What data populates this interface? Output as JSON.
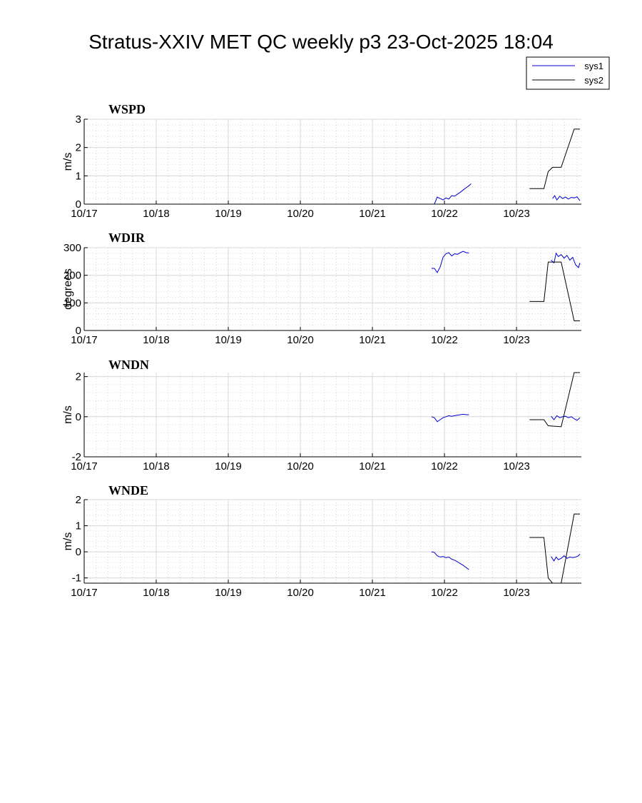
{
  "title": "Stratus-XXIV MET QC weekly p3 23-Oct-2025 18:04",
  "legend": {
    "position": "top-right",
    "entries": [
      {
        "name": "sys1",
        "color": "#0000cc"
      },
      {
        "name": "sys2",
        "color": "#000000"
      }
    ]
  },
  "chart_data": [
    {
      "type": "line",
      "title": "WSPD",
      "ylabel": "m/s",
      "xlim": [
        0,
        6.9
      ],
      "ylim": [
        0,
        3
      ],
      "yticks": [
        0,
        1,
        2,
        3
      ],
      "grid": true,
      "x_ticks": [
        {
          "x": 0,
          "label": "10/17"
        },
        {
          "x": 1,
          "label": "10/18"
        },
        {
          "x": 2,
          "label": "10/19"
        },
        {
          "x": 3,
          "label": "10/20"
        },
        {
          "x": 4,
          "label": "10/21"
        },
        {
          "x": 5,
          "label": "10/22"
        },
        {
          "x": 6,
          "label": "10/23"
        }
      ],
      "series": [
        {
          "name": "sys1",
          "color": "#0000cc",
          "segments": [
            [
              [
                4.86,
                0.0
              ],
              [
                4.9,
                0.25
              ],
              [
                4.94,
                0.2
              ],
              [
                4.98,
                0.15
              ],
              [
                5.02,
                0.22
              ],
              [
                5.06,
                0.18
              ],
              [
                5.1,
                0.3
              ],
              [
                5.14,
                0.28
              ],
              [
                5.18,
                0.35
              ],
              [
                5.22,
                0.42
              ],
              [
                5.26,
                0.5
              ],
              [
                5.3,
                0.58
              ],
              [
                5.34,
                0.65
              ],
              [
                5.37,
                0.72
              ]
            ],
            [
              [
                6.5,
                0.2
              ],
              [
                6.53,
                0.3
              ],
              [
                6.56,
                0.15
              ],
              [
                6.6,
                0.28
              ],
              [
                6.64,
                0.2
              ],
              [
                6.68,
                0.25
              ],
              [
                6.72,
                0.18
              ],
              [
                6.76,
                0.24
              ],
              [
                6.8,
                0.22
              ],
              [
                6.84,
                0.26
              ],
              [
                6.88,
                0.12
              ]
            ]
          ]
        },
        {
          "name": "sys2",
          "color": "#000000",
          "segments": [
            [
              [
                6.18,
                0.55
              ],
              [
                6.38,
                0.55
              ],
              [
                6.44,
                1.15
              ],
              [
                6.5,
                1.3
              ],
              [
                6.62,
                1.3
              ],
              [
                6.8,
                2.65
              ],
              [
                6.88,
                2.65
              ]
            ]
          ]
        }
      ]
    },
    {
      "type": "line",
      "title": "WDIR",
      "ylabel": "degrees",
      "xlim": [
        0,
        6.9
      ],
      "ylim": [
        0,
        300
      ],
      "yticks": [
        0,
        100,
        200,
        300
      ],
      "grid": true,
      "x_ticks": [
        {
          "x": 0,
          "label": "10/17"
        },
        {
          "x": 1,
          "label": "10/18"
        },
        {
          "x": 2,
          "label": "10/19"
        },
        {
          "x": 3,
          "label": "10/20"
        },
        {
          "x": 4,
          "label": "10/21"
        },
        {
          "x": 5,
          "label": "10/22"
        },
        {
          "x": 6,
          "label": "10/23"
        }
      ],
      "series": [
        {
          "name": "sys1",
          "color": "#0000cc",
          "segments": [
            [
              [
                4.82,
                225
              ],
              [
                4.86,
                225
              ],
              [
                4.9,
                210
              ],
              [
                4.94,
                230
              ],
              [
                4.98,
                265
              ],
              [
                5.02,
                278
              ],
              [
                5.06,
                282
              ],
              [
                5.1,
                270
              ],
              [
                5.14,
                278
              ],
              [
                5.18,
                276
              ],
              [
                5.22,
                282
              ],
              [
                5.26,
                287
              ],
              [
                5.3,
                282
              ],
              [
                5.34,
                281
              ]
            ],
            [
              [
                6.48,
                255
              ],
              [
                6.52,
                245
              ],
              [
                6.55,
                280
              ],
              [
                6.58,
                268
              ],
              [
                6.62,
                275
              ],
              [
                6.66,
                262
              ],
              [
                6.7,
                272
              ],
              [
                6.74,
                255
              ],
              [
                6.78,
                265
              ],
              [
                6.82,
                238
              ],
              [
                6.86,
                228
              ],
              [
                6.88,
                245
              ]
            ]
          ]
        },
        {
          "name": "sys2",
          "color": "#000000",
          "segments": [
            [
              [
                6.18,
                105
              ],
              [
                6.38,
                105
              ],
              [
                6.44,
                248
              ],
              [
                6.62,
                248
              ],
              [
                6.8,
                35
              ],
              [
                6.88,
                35
              ]
            ]
          ]
        }
      ]
    },
    {
      "type": "line",
      "title": "WNDN",
      "ylabel": "m/s",
      "xlim": [
        0,
        6.9
      ],
      "ylim": [
        -2,
        2.2
      ],
      "yticks": [
        -2,
        0,
        2
      ],
      "grid": true,
      "x_ticks": [
        {
          "x": 0,
          "label": "10/17"
        },
        {
          "x": 1,
          "label": "10/18"
        },
        {
          "x": 2,
          "label": "10/19"
        },
        {
          "x": 3,
          "label": "10/20"
        },
        {
          "x": 4,
          "label": "10/21"
        },
        {
          "x": 5,
          "label": "10/22"
        },
        {
          "x": 6,
          "label": "10/23"
        }
      ],
      "series": [
        {
          "name": "sys1",
          "color": "#0000cc",
          "segments": [
            [
              [
                4.82,
                0.0
              ],
              [
                4.86,
                -0.05
              ],
              [
                4.9,
                -0.25
              ],
              [
                4.94,
                -0.15
              ],
              [
                4.98,
                -0.05
              ],
              [
                5.02,
                0.0
              ],
              [
                5.06,
                0.05
              ],
              [
                5.1,
                0.02
              ],
              [
                5.14,
                0.05
              ],
              [
                5.18,
                0.08
              ],
              [
                5.22,
                0.1
              ],
              [
                5.26,
                0.12
              ],
              [
                5.3,
                0.1
              ],
              [
                5.34,
                0.1
              ]
            ],
            [
              [
                6.48,
                0.02
              ],
              [
                6.52,
                -0.15
              ],
              [
                6.56,
                0.05
              ],
              [
                6.6,
                -0.05
              ],
              [
                6.64,
                0.0
              ],
              [
                6.68,
                0.02
              ],
              [
                6.72,
                -0.05
              ],
              [
                6.76,
                0.0
              ],
              [
                6.8,
                -0.1
              ],
              [
                6.84,
                -0.18
              ],
              [
                6.88,
                -0.05
              ]
            ]
          ]
        },
        {
          "name": "sys2",
          "color": "#000000",
          "segments": [
            [
              [
                6.18,
                -0.15
              ],
              [
                6.38,
                -0.15
              ],
              [
                6.44,
                -0.45
              ],
              [
                6.62,
                -0.5
              ],
              [
                6.8,
                2.2
              ],
              [
                6.88,
                2.2
              ]
            ]
          ]
        }
      ]
    },
    {
      "type": "line",
      "title": "WNDE",
      "ylabel": "m/s",
      "xlim": [
        0,
        6.9
      ],
      "ylim": [
        -1.2,
        2
      ],
      "yticks": [
        -1,
        0,
        1,
        2
      ],
      "grid": true,
      "x_ticks": [
        {
          "x": 0,
          "label": "10/17"
        },
        {
          "x": 1,
          "label": "10/18"
        },
        {
          "x": 2,
          "label": "10/19"
        },
        {
          "x": 3,
          "label": "10/20"
        },
        {
          "x": 4,
          "label": "10/21"
        },
        {
          "x": 5,
          "label": "10/22"
        },
        {
          "x": 6,
          "label": "10/23"
        }
      ],
      "series": [
        {
          "name": "sys1",
          "color": "#0000cc",
          "segments": [
            [
              [
                4.82,
                0.0
              ],
              [
                4.86,
                -0.02
              ],
              [
                4.9,
                -0.15
              ],
              [
                4.94,
                -0.2
              ],
              [
                4.98,
                -0.18
              ],
              [
                5.02,
                -0.22
              ],
              [
                5.06,
                -0.2
              ],
              [
                5.1,
                -0.28
              ],
              [
                5.14,
                -0.32
              ],
              [
                5.18,
                -0.38
              ],
              [
                5.22,
                -0.45
              ],
              [
                5.26,
                -0.52
              ],
              [
                5.3,
                -0.6
              ],
              [
                5.34,
                -0.68
              ]
            ],
            [
              [
                6.48,
                -0.18
              ],
              [
                6.52,
                -0.35
              ],
              [
                6.55,
                -0.2
              ],
              [
                6.58,
                -0.3
              ],
              [
                6.62,
                -0.25
              ],
              [
                6.66,
                -0.15
              ],
              [
                6.7,
                -0.25
              ],
              [
                6.74,
                -0.2
              ],
              [
                6.78,
                -0.22
              ],
              [
                6.82,
                -0.2
              ],
              [
                6.86,
                -0.15
              ],
              [
                6.88,
                -0.08
              ]
            ]
          ]
        },
        {
          "name": "sys2",
          "color": "#000000",
          "segments": [
            [
              [
                6.18,
                0.55
              ],
              [
                6.38,
                0.55
              ],
              [
                6.44,
                -1.0
              ],
              [
                6.5,
                -1.2
              ],
              [
                6.62,
                -1.2
              ],
              [
                6.8,
                1.45
              ],
              [
                6.88,
                1.45
              ]
            ]
          ]
        }
      ]
    }
  ]
}
